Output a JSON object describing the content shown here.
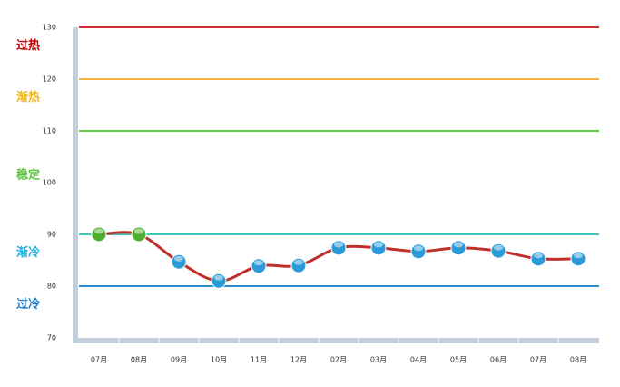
{
  "chart_data": {
    "type": "line",
    "categories": [
      "07月",
      "08月",
      "09月",
      "10月",
      "11月",
      "12月",
      "02月",
      "03月",
      "04月",
      "05月",
      "06月",
      "07月",
      "08月"
    ],
    "series": [
      {
        "color": "#c0302a",
        "values": [
          90,
          90,
          84.7,
          81,
          83.9,
          84,
          87.4,
          87.4,
          86.7,
          87.4,
          86.8,
          85.3,
          85.3
        ],
        "point_colors": [
          "#4fae2e",
          "#4fae2e",
          "#2a9ad8",
          "#2a9ad8",
          "#2a9ad8",
          "#2a9ad8",
          "#2a9ad8",
          "#2a9ad8",
          "#2a9ad8",
          "#2a9ad8",
          "#2a9ad8",
          "#2a9ad8",
          "#2a9ad8"
        ]
      }
    ],
    "ylim": [
      70,
      130
    ],
    "yticks": [
      70,
      80,
      90,
      100,
      110,
      120,
      130
    ],
    "zones": [
      {
        "name": "过热",
        "color": "#c00000",
        "line_color": "#d42a2a",
        "line": 130
      },
      {
        "name": "渐热",
        "color": "#f0b820",
        "line_color": "#f5b040",
        "line": 120
      },
      {
        "name": "稳定",
        "color": "#5cc43c",
        "line_color": "#5fcf3f",
        "line": 110
      },
      {
        "name": "渐冷",
        "color": "#22b0e0",
        "line_color": "#3ec6c0",
        "line": 90
      },
      {
        "name": "过冷",
        "color": "#1f7fd0",
        "line_color": "#2a8fd6",
        "line": 80
      }
    ]
  }
}
